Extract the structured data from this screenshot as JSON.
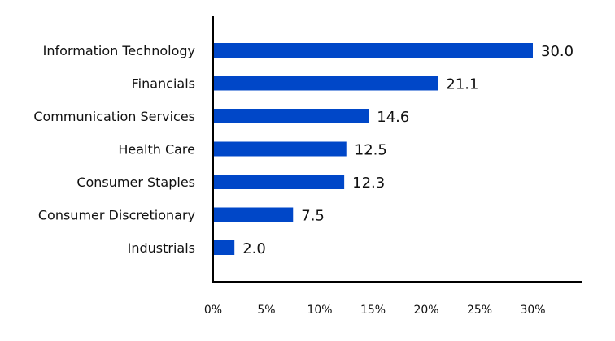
{
  "chart_data": {
    "type": "bar",
    "orientation": "horizontal",
    "categories": [
      "Information Technology",
      "Financials",
      "Communication Services",
      "Health Care",
      "Consumer Staples",
      "Consumer Discretionary",
      "Industrials"
    ],
    "values": [
      30.0,
      21.1,
      14.6,
      12.5,
      12.3,
      7.5,
      2.0
    ],
    "value_labels": [
      "30.0",
      "21.1",
      "14.6",
      "12.5",
      "12.3",
      "7.5",
      "2.0"
    ],
    "x_ticks": [
      0,
      5,
      10,
      15,
      20,
      25,
      30
    ],
    "x_tick_labels": [
      "0%",
      "5%",
      "10%",
      "15%",
      "20%",
      "25%",
      "30%"
    ],
    "xlim": [
      0,
      34.5
    ],
    "title": "",
    "xlabel": "",
    "ylabel": "",
    "grid": false,
    "legend": "none",
    "bar_color": "#0047c8"
  }
}
